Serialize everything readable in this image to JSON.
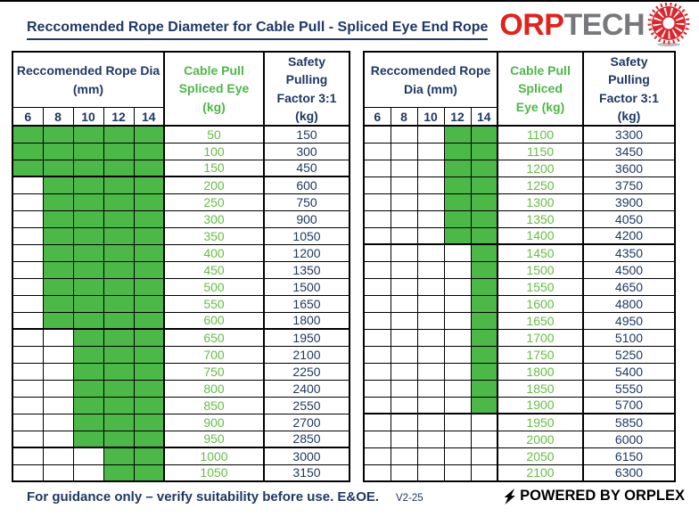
{
  "title": "Reccomended Rope Diameter for Cable Pull - Spliced Eye End Rope",
  "logo": {
    "text_red": "ORP",
    "text_gray": "TECH",
    "icon": "rope-cross-section-starburst"
  },
  "columns": {
    "dia_header": "Reccomended Rope Dia (mm)",
    "cable_header": "Cable Pull Spliced Eye (kg)",
    "safety_header": "Safety Pulling Factor 3:1 (kg)",
    "diameters": [
      "6",
      "8",
      "10",
      "12",
      "14"
    ]
  },
  "tables": [
    {
      "rows": [
        {
          "cable": "50",
          "safety": "150",
          "ok": [
            1,
            1,
            1,
            1,
            1
          ]
        },
        {
          "cable": "100",
          "safety": "300",
          "ok": [
            1,
            1,
            1,
            1,
            1
          ]
        },
        {
          "cable": "150",
          "safety": "450",
          "ok": [
            1,
            1,
            1,
            1,
            1
          ]
        },
        {
          "cable": "200",
          "safety": "600",
          "ok": [
            0,
            1,
            1,
            1,
            1
          ]
        },
        {
          "cable": "250",
          "safety": "750",
          "ok": [
            0,
            1,
            1,
            1,
            1
          ]
        },
        {
          "cable": "300",
          "safety": "900",
          "ok": [
            0,
            1,
            1,
            1,
            1
          ]
        },
        {
          "cable": "350",
          "safety": "1050",
          "ok": [
            0,
            1,
            1,
            1,
            1
          ]
        },
        {
          "cable": "400",
          "safety": "1200",
          "ok": [
            0,
            1,
            1,
            1,
            1
          ]
        },
        {
          "cable": "450",
          "safety": "1350",
          "ok": [
            0,
            1,
            1,
            1,
            1
          ]
        },
        {
          "cable": "500",
          "safety": "1500",
          "ok": [
            0,
            1,
            1,
            1,
            1
          ]
        },
        {
          "cable": "550",
          "safety": "1650",
          "ok": [
            0,
            1,
            1,
            1,
            1
          ]
        },
        {
          "cable": "600",
          "safety": "1800",
          "ok": [
            0,
            1,
            1,
            1,
            1
          ]
        },
        {
          "cable": "650",
          "safety": "1950",
          "ok": [
            0,
            0,
            1,
            1,
            1
          ]
        },
        {
          "cable": "700",
          "safety": "2100",
          "ok": [
            0,
            0,
            1,
            1,
            1
          ]
        },
        {
          "cable": "750",
          "safety": "2250",
          "ok": [
            0,
            0,
            1,
            1,
            1
          ]
        },
        {
          "cable": "800",
          "safety": "2400",
          "ok": [
            0,
            0,
            1,
            1,
            1
          ]
        },
        {
          "cable": "850",
          "safety": "2550",
          "ok": [
            0,
            0,
            1,
            1,
            1
          ]
        },
        {
          "cable": "900",
          "safety": "2700",
          "ok": [
            0,
            0,
            1,
            1,
            1
          ]
        },
        {
          "cable": "950",
          "safety": "2850",
          "ok": [
            0,
            0,
            1,
            1,
            1
          ]
        },
        {
          "cable": "1000",
          "safety": "3000",
          "ok": [
            0,
            0,
            0,
            1,
            1
          ]
        },
        {
          "cable": "1050",
          "safety": "3150",
          "ok": [
            0,
            0,
            0,
            1,
            1
          ]
        }
      ]
    },
    {
      "rows": [
        {
          "cable": "1100",
          "safety": "3300",
          "ok": [
            0,
            0,
            0,
            1,
            1
          ]
        },
        {
          "cable": "1150",
          "safety": "3450",
          "ok": [
            0,
            0,
            0,
            1,
            1
          ]
        },
        {
          "cable": "1200",
          "safety": "3600",
          "ok": [
            0,
            0,
            0,
            1,
            1
          ]
        },
        {
          "cable": "1250",
          "safety": "3750",
          "ok": [
            0,
            0,
            0,
            1,
            1
          ]
        },
        {
          "cable": "1300",
          "safety": "3900",
          "ok": [
            0,
            0,
            0,
            1,
            1
          ]
        },
        {
          "cable": "1350",
          "safety": "4050",
          "ok": [
            0,
            0,
            0,
            1,
            1
          ]
        },
        {
          "cable": "1400",
          "safety": "4200",
          "ok": [
            0,
            0,
            0,
            1,
            1
          ]
        },
        {
          "cable": "1450",
          "safety": "4350",
          "ok": [
            0,
            0,
            0,
            0,
            1
          ]
        },
        {
          "cable": "1500",
          "safety": "4500",
          "ok": [
            0,
            0,
            0,
            0,
            1
          ]
        },
        {
          "cable": "1550",
          "safety": "4650",
          "ok": [
            0,
            0,
            0,
            0,
            1
          ]
        },
        {
          "cable": "1600",
          "safety": "4800",
          "ok": [
            0,
            0,
            0,
            0,
            1
          ]
        },
        {
          "cable": "1650",
          "safety": "4950",
          "ok": [
            0,
            0,
            0,
            0,
            1
          ]
        },
        {
          "cable": "1700",
          "safety": "5100",
          "ok": [
            0,
            0,
            0,
            0,
            1
          ]
        },
        {
          "cable": "1750",
          "safety": "5250",
          "ok": [
            0,
            0,
            0,
            0,
            1
          ]
        },
        {
          "cable": "1800",
          "safety": "5400",
          "ok": [
            0,
            0,
            0,
            0,
            1
          ]
        },
        {
          "cable": "1850",
          "safety": "5550",
          "ok": [
            0,
            0,
            0,
            0,
            1
          ]
        },
        {
          "cable": "1900",
          "safety": "5700",
          "ok": [
            0,
            0,
            0,
            0,
            1
          ]
        },
        {
          "cable": "1950",
          "safety": "5850",
          "ok": [
            0,
            0,
            0,
            0,
            0
          ]
        },
        {
          "cable": "2000",
          "safety": "6000",
          "ok": [
            0,
            0,
            0,
            0,
            0
          ]
        },
        {
          "cable": "2050",
          "safety": "6150",
          "ok": [
            0,
            0,
            0,
            0,
            0
          ]
        },
        {
          "cable": "2100",
          "safety": "6300",
          "ok": [
            0,
            0,
            0,
            0,
            0
          ]
        }
      ]
    }
  ],
  "footer": {
    "guidance": "For guidance only – verify suitability before use. E&OE.",
    "version": "V2-25",
    "powered": "POWERED BY ORPLEX"
  },
  "colors": {
    "navy": "#1F3864",
    "green_fill": "#4CB848",
    "green_header": "#4EB748",
    "green_text": "#66BD45",
    "red": "#E0231C",
    "gray": "#77787B"
  }
}
